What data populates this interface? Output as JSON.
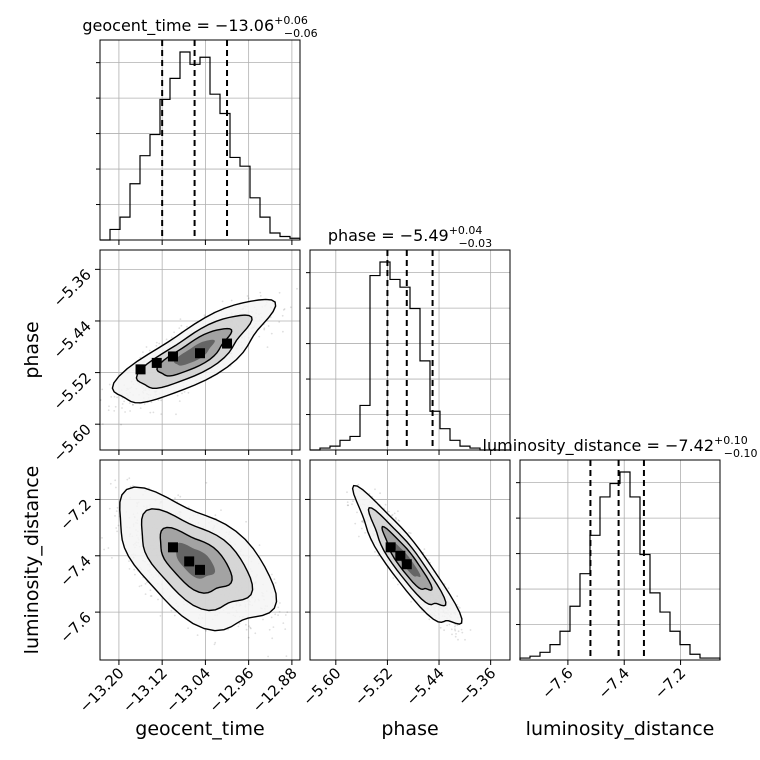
{
  "chart_data": {
    "type": "corner",
    "parameters": [
      {
        "name": "geocent_time",
        "axis_label": "geocent_time",
        "title": {
          "prefix": "geocent_time = ",
          "median": "−13.06",
          "plus": "+0.06",
          "minus": "−0.06"
        },
        "range": [
          -13.235,
          -12.865
        ],
        "ticks": [
          -13.2,
          -13.12,
          -13.04,
          -12.96,
          -12.88
        ],
        "tick_labels": [
          "−13.20",
          "−13.12",
          "−13.04",
          "−12.96",
          "−12.88"
        ],
        "quantiles": [
          -13.12,
          -13.06,
          -13.0
        ],
        "histogram": {
          "edges": [
            -13.235,
            -13.2165,
            -13.198,
            -13.1795,
            -13.161,
            -13.1425,
            -13.124,
            -13.1055,
            -13.087,
            -13.0685,
            -13.05,
            -13.0315,
            -13.013,
            -12.9945,
            -12.976,
            -12.9575,
            -12.939,
            -12.9205,
            -12.902,
            -12.8835,
            -12.865
          ],
          "counts": [
            0,
            6,
            13,
            32,
            48,
            60,
            80,
            92,
            107,
            100,
            104,
            83,
            72,
            47,
            42,
            24,
            13,
            4,
            2,
            1
          ]
        }
      },
      {
        "name": "phase",
        "axis_label": "phase",
        "title": {
          "prefix": "phase = ",
          "median": "−5.49",
          "plus": "+0.04",
          "minus": "−0.03"
        },
        "range": [
          -5.64,
          -5.33
        ],
        "ticks": [
          -5.6,
          -5.52,
          -5.44,
          -5.36
        ],
        "tick_labels": [
          "−5.60",
          "−5.52",
          "−5.44",
          "−5.36"
        ],
        "quantiles": [
          -5.52,
          -5.49,
          -5.45
        ],
        "histogram": {
          "edges": [
            -5.64,
            -5.6245,
            -5.609,
            -5.5935,
            -5.578,
            -5.5625,
            -5.547,
            -5.5315,
            -5.516,
            -5.5005,
            -5.485,
            -5.4695,
            -5.454,
            -5.4385,
            -5.423,
            -5.4075,
            -5.392,
            -5.3765,
            -5.361,
            -5.3455,
            -5.33
          ],
          "counts": [
            0,
            1,
            2,
            5,
            7,
            23,
            90,
            97,
            88,
            84,
            73,
            46,
            20,
            11,
            5,
            2,
            1,
            0,
            0,
            0
          ]
        }
      },
      {
        "name": "luminosity_distance",
        "axis_label": "luminosity_distance",
        "title": {
          "prefix": "luminosity_distance = ",
          "median": "−7.42",
          "plus": "+0.10",
          "minus": "−0.10"
        },
        "range": [
          -7.77,
          -7.06
        ],
        "ticks": [
          -7.6,
          -7.4,
          -7.2
        ],
        "tick_labels": [
          "−7.6",
          "−7.4",
          "−7.2"
        ],
        "y_ticks": [
          -7.6,
          -7.4,
          -7.2
        ],
        "y_tick_labels": [
          "−7.6",
          "−7.4",
          "−7.2"
        ],
        "quantiles": [
          -7.52,
          -7.42,
          -7.33
        ],
        "histogram": {
          "edges": [
            -7.77,
            -7.7345,
            -7.699,
            -7.6635,
            -7.628,
            -7.5925,
            -7.557,
            -7.5215,
            -7.486,
            -7.4505,
            -7.415,
            -7.3795,
            -7.344,
            -7.3085,
            -7.273,
            -7.2375,
            -7.202,
            -7.1665,
            -7.131,
            -7.0955,
            -7.06
          ],
          "counts": [
            1,
            2,
            4,
            8,
            15,
            28,
            45,
            65,
            85,
            92,
            98,
            85,
            55,
            35,
            25,
            15,
            8,
            3,
            1,
            1
          ]
        }
      }
    ],
    "pairs": [
      {
        "x": "geocent_time",
        "y": "phase",
        "cov": [
          [
            0.0036,
            0.0016
          ],
          [
            0.0016,
            0.0011
          ]
        ],
        "center": [
          -13.06,
          -5.49
        ],
        "density_peaks": [
          [
            -13.16,
            -5.515
          ],
          [
            -13.13,
            -5.505
          ],
          [
            -13.1,
            -5.495
          ],
          [
            -13.05,
            -5.49
          ],
          [
            -13.0,
            -5.475
          ]
        ],
        "contour_levels": 3
      },
      {
        "x": "geocent_time",
        "y": "luminosity_distance",
        "cov": [
          [
            0.0036,
            -0.0033
          ],
          [
            -0.0033,
            0.01
          ]
        ],
        "center": [
          -13.06,
          -7.42
        ],
        "density_peaks": [
          [
            -13.1,
            -7.37
          ],
          [
            -13.07,
            -7.42
          ],
          [
            -13.05,
            -7.45
          ]
        ],
        "contour_levels": 3
      },
      {
        "x": "phase",
        "y": "luminosity_distance",
        "cov": [
          [
            0.0011,
            -0.003
          ],
          [
            -0.003,
            0.01
          ]
        ],
        "center": [
          -5.49,
          -7.42
        ],
        "density_peaks": [
          [
            -5.515,
            -7.37
          ],
          [
            -5.5,
            -7.4
          ],
          [
            -5.49,
            -7.43
          ]
        ],
        "contour_levels": 3
      }
    ],
    "grid": true,
    "quantile_line_style": "dashed"
  }
}
